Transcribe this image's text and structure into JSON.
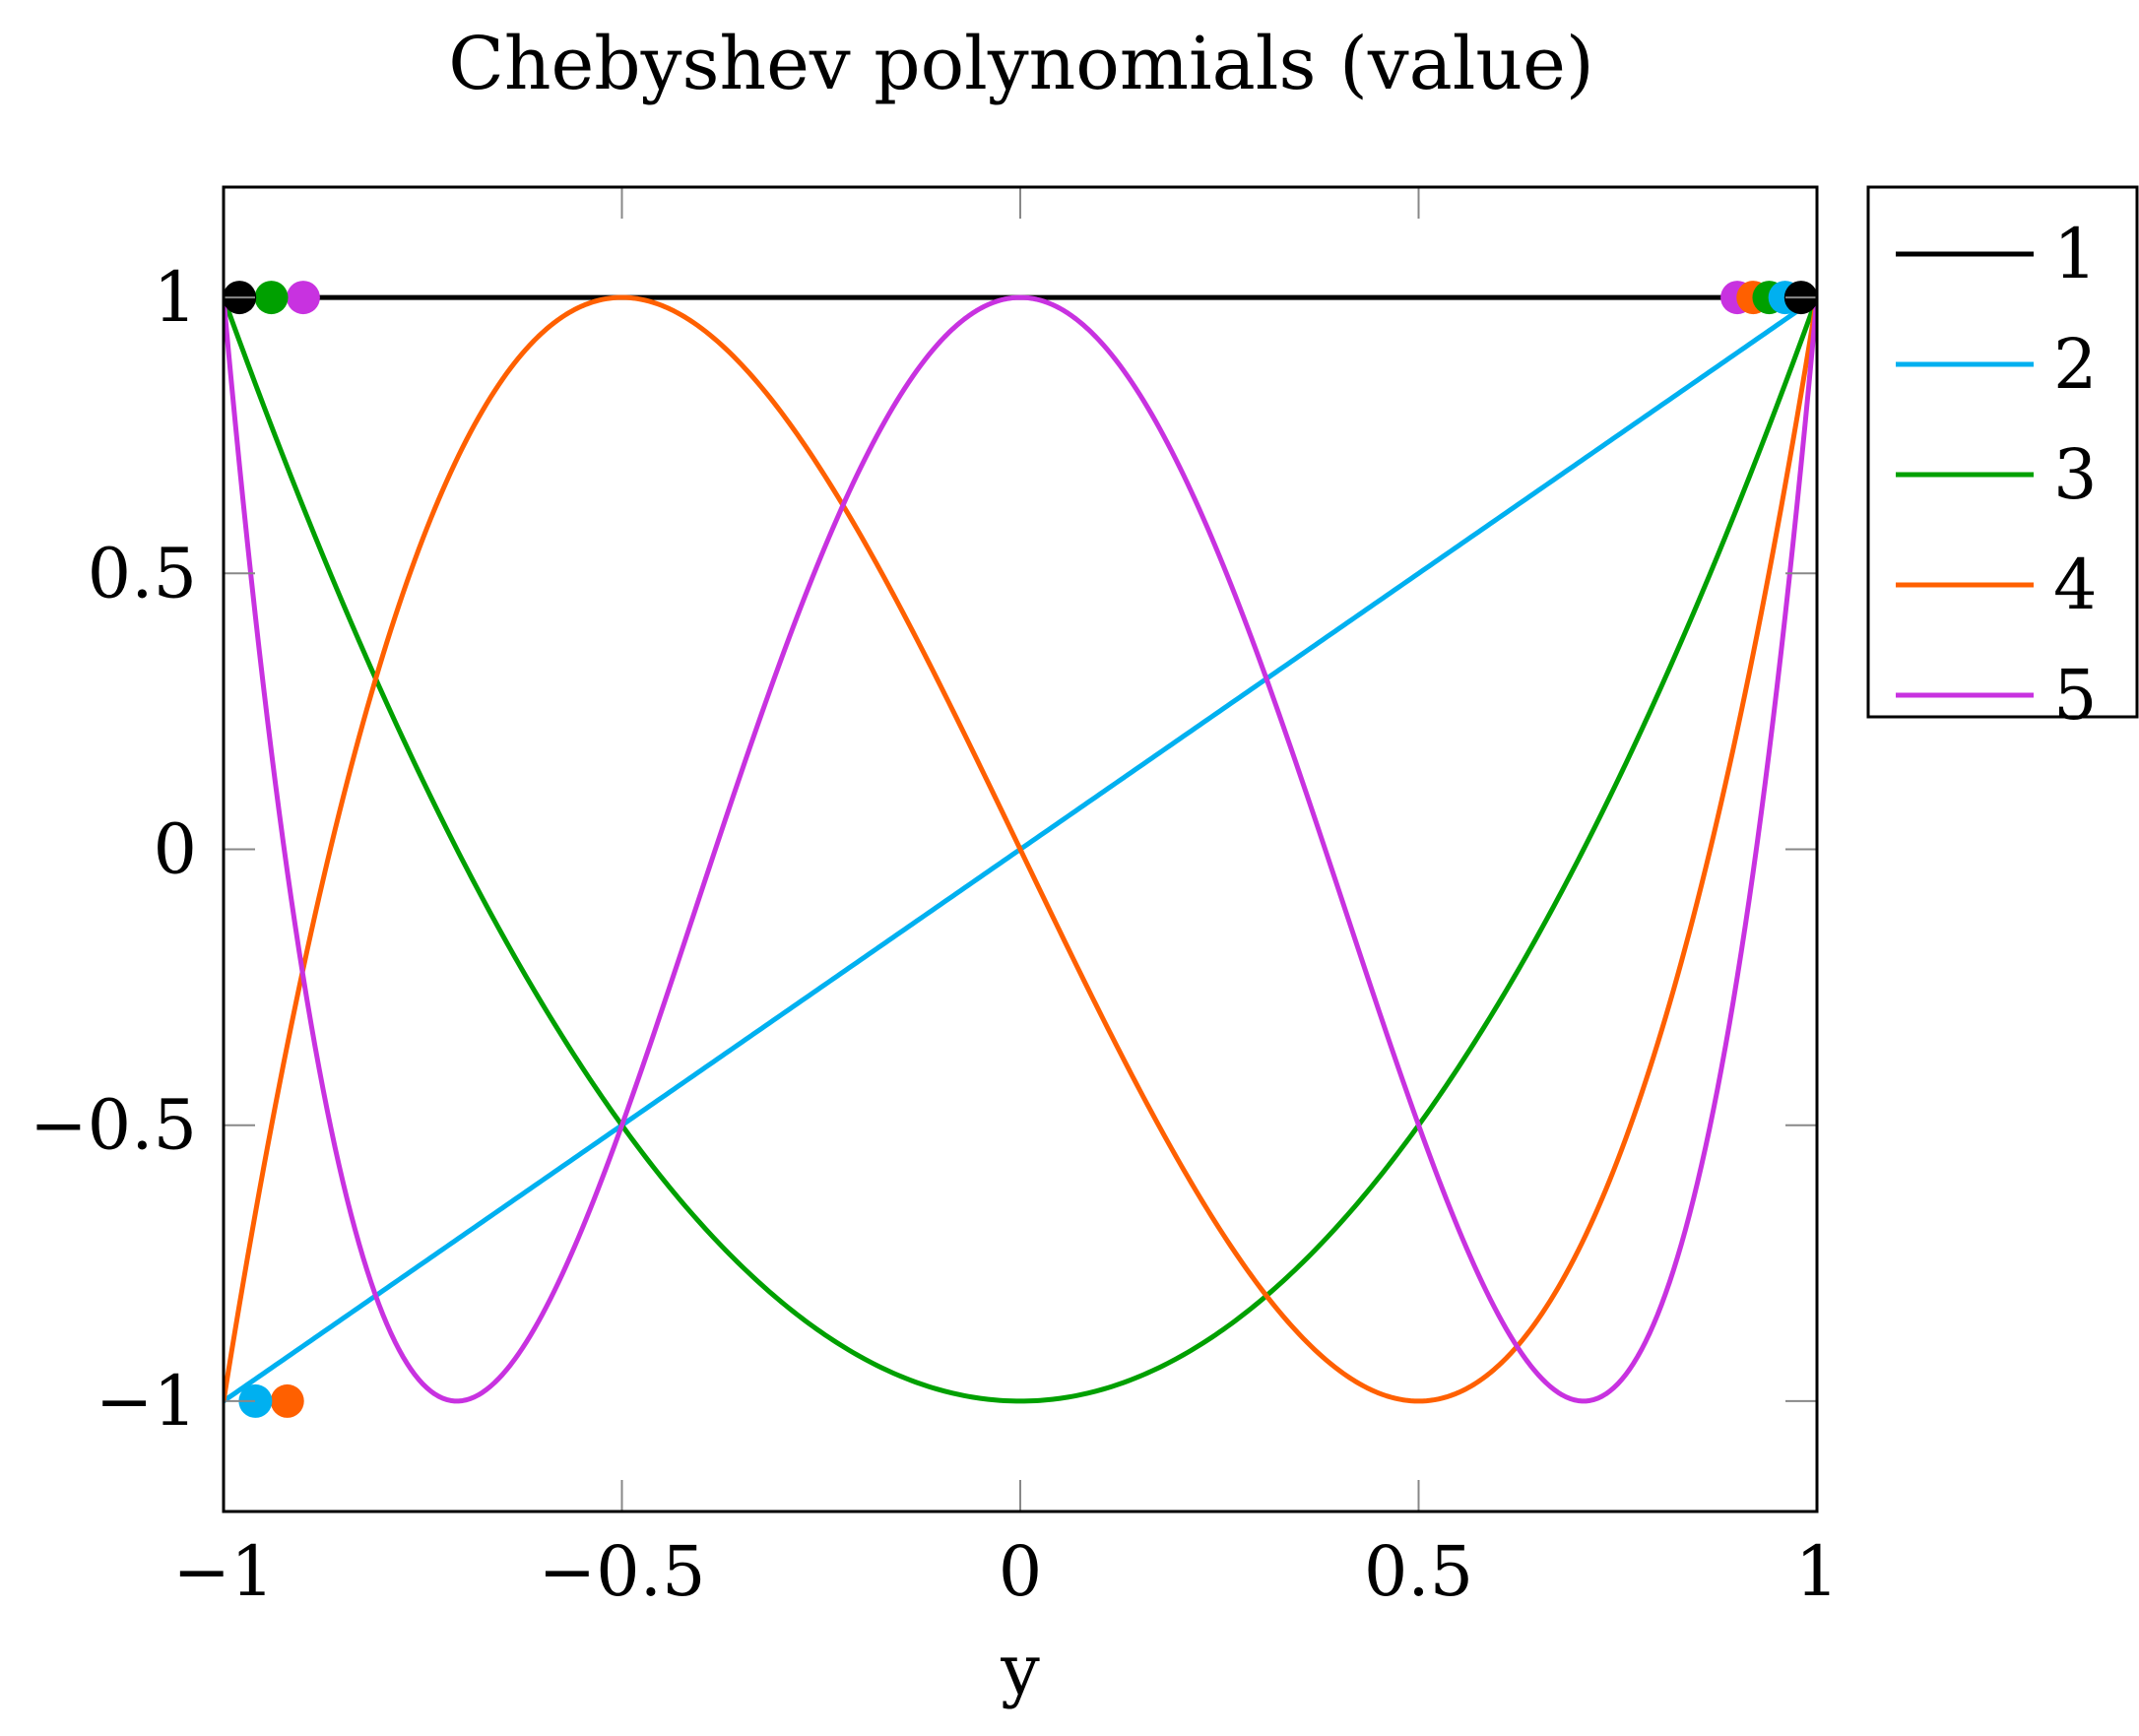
{
  "chart_data": {
    "type": "line",
    "title": "Chebyshev polynomials (value)",
    "xlabel": "y",
    "ylabel": "",
    "xlim": [
      -1,
      1
    ],
    "ylim": [
      -1.2,
      1.2
    ],
    "x_ticks": [
      -1,
      -0.5,
      0,
      0.5,
      1
    ],
    "x_tick_labels": [
      "−1",
      "−0.5",
      "0",
      "0.5",
      "1"
    ],
    "y_ticks": [
      -1,
      -0.5,
      0,
      0.5,
      1
    ],
    "y_tick_labels": [
      "−1",
      "−0.5",
      "0",
      "0.5",
      "1"
    ],
    "grid": false,
    "legend_position": "outside-right-top",
    "series": [
      {
        "name": "1",
        "color": "#000000",
        "formula": "1",
        "markers": [
          [
            -0.98,
            1
          ],
          [
            0.98,
            1
          ]
        ]
      },
      {
        "name": "2",
        "color": "#00b0f0",
        "formula": "y",
        "markers": [
          [
            -0.96,
            -1
          ],
          [
            0.96,
            1
          ]
        ]
      },
      {
        "name": "3",
        "color": "#00a000",
        "formula": "2y^2-1",
        "markers": [
          [
            -0.94,
            1
          ],
          [
            0.94,
            1
          ]
        ]
      },
      {
        "name": "4",
        "color": "#ff6000",
        "formula": "4y^3-3y",
        "markers": [
          [
            -0.92,
            -1
          ],
          [
            0.92,
            1
          ]
        ]
      },
      {
        "name": "5",
        "color": "#c832e0",
        "formula": "8y^4-8y^2+1",
        "markers": [
          [
            -0.9,
            1
          ],
          [
            0.9,
            1
          ]
        ]
      }
    ]
  }
}
